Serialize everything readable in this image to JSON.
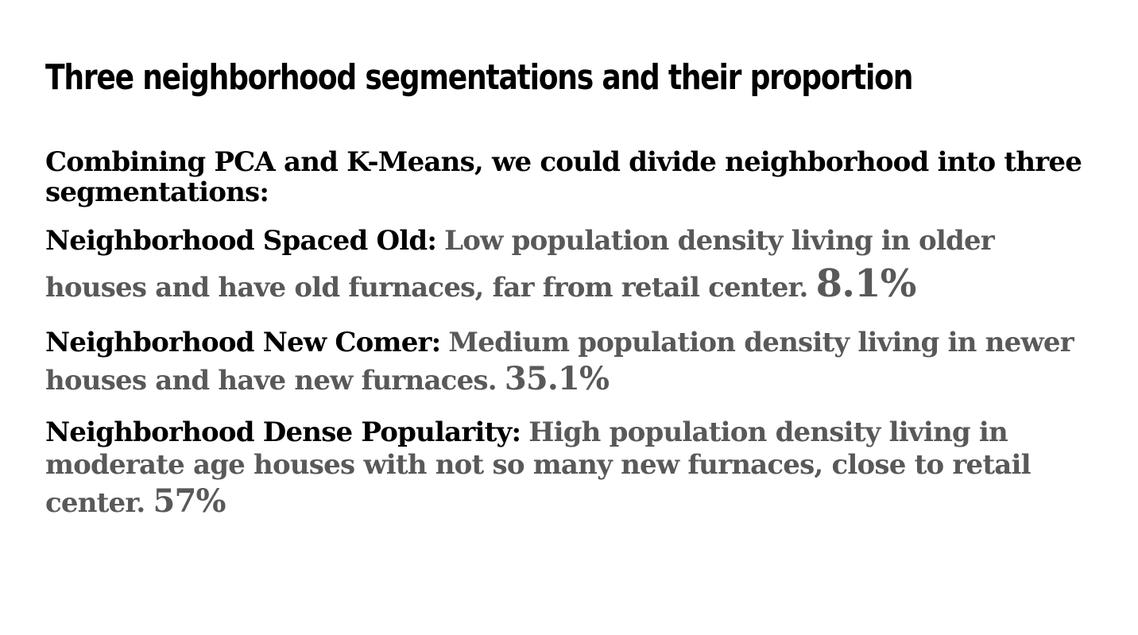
{
  "slide": {
    "title": "Three neighborhood segmentations and their proportion",
    "intro": "Combining PCA and K-Means, we could divide neighborhood into three segmentations:",
    "segments": [
      {
        "name": "Neighborhood Spaced Old:",
        "description": "Low population density living in older houses and have old furnaces, far from retail center.",
        "proportion": "8.1%"
      },
      {
        "name": "Neighborhood New Comer:",
        "description": "Medium population density living in newer houses and have new furnaces.",
        "proportion": "35.1%"
      },
      {
        "name": "Neighborhood Dense Popularity:",
        "description": "High population density living in moderate age houses with not so many new furnaces, close to retail center.",
        "proportion": "57%"
      }
    ]
  }
}
